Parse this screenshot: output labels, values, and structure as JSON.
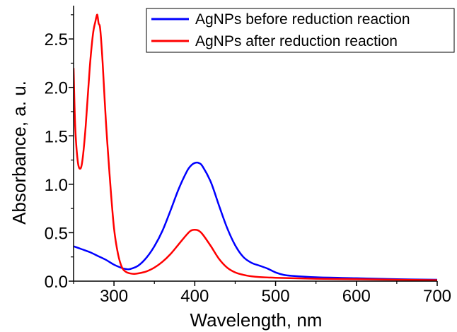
{
  "chart_data": {
    "type": "line",
    "title": "",
    "xlabel": "Wavelength, nm",
    "ylabel": "Absorbance, a. u.",
    "xlim": [
      250,
      700
    ],
    "ylim": [
      0.0,
      2.8
    ],
    "x_ticks": [
      300,
      400,
      500,
      600,
      700
    ],
    "x_tick_labels": [
      "300",
      "400",
      "500",
      "600",
      "700"
    ],
    "y_ticks": [
      0.0,
      0.5,
      1.0,
      1.5,
      2.0,
      2.5
    ],
    "y_tick_labels": [
      "0.0",
      "0.5",
      "1.0",
      "1.5",
      "2.0",
      "2.5"
    ],
    "grid": false,
    "legend_position": "top-right",
    "series": [
      {
        "name": "AgNPs before reduction reaction",
        "color": "#0000ff",
        "x": [
          250,
          260,
          270,
          280,
          290,
          300,
          310,
          315,
          320,
          330,
          340,
          350,
          360,
          370,
          380,
          390,
          395,
          400,
          405,
          410,
          420,
          430,
          440,
          450,
          460,
          470,
          480,
          490,
          500,
          510,
          520,
          550,
          600,
          650,
          700
        ],
        "y": [
          0.36,
          0.33,
          0.3,
          0.26,
          0.22,
          0.17,
          0.135,
          0.125,
          0.125,
          0.16,
          0.24,
          0.36,
          0.52,
          0.73,
          0.95,
          1.13,
          1.19,
          1.22,
          1.22,
          1.18,
          1.02,
          0.78,
          0.55,
          0.37,
          0.25,
          0.19,
          0.16,
          0.13,
          0.09,
          0.065,
          0.055,
          0.04,
          0.03,
          0.02,
          0.015
        ]
      },
      {
        "name": "AgNPs after reduction reaction",
        "color": "#ff0000",
        "x": [
          250,
          252,
          255,
          258,
          261,
          265,
          270,
          274,
          277,
          279,
          280,
          281,
          283,
          286,
          290,
          295,
          300,
          305,
          310,
          315,
          320,
          325,
          330,
          340,
          350,
          360,
          370,
          380,
          390,
          395,
          400,
          405,
          410,
          420,
          430,
          440,
          450,
          460,
          470,
          480,
          500,
          550,
          600,
          650,
          700
        ],
        "y": [
          2.2,
          1.6,
          1.25,
          1.16,
          1.25,
          1.6,
          2.2,
          2.55,
          2.68,
          2.75,
          2.72,
          2.66,
          2.6,
          2.25,
          1.65,
          1.05,
          0.55,
          0.28,
          0.14,
          0.095,
          0.08,
          0.075,
          0.08,
          0.1,
          0.14,
          0.2,
          0.28,
          0.38,
          0.48,
          0.52,
          0.53,
          0.52,
          0.48,
          0.36,
          0.23,
          0.14,
          0.09,
          0.065,
          0.05,
          0.042,
          0.035,
          0.025,
          0.02,
          0.015,
          0.01
        ]
      }
    ]
  }
}
